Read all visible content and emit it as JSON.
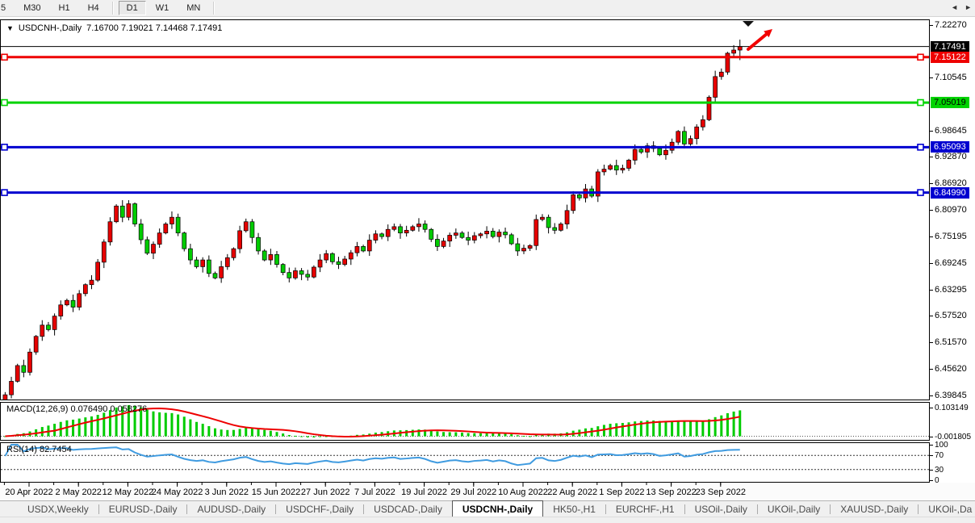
{
  "toolbar": {
    "timeframes": [
      {
        "label": "5",
        "active": false
      },
      {
        "label": "M30",
        "active": false
      },
      {
        "label": "H1",
        "active": false
      },
      {
        "label": "H4",
        "active": false
      },
      {
        "label": "D1",
        "active": true
      },
      {
        "label": "W1",
        "active": false
      },
      {
        "label": "MN",
        "active": false
      }
    ]
  },
  "chart_header": {
    "marker": "▼",
    "title": "USDCNH-,Daily",
    "ohlc": "7.16700 7.19021 7.14468 7.17491"
  },
  "macd_panel": {
    "label": "MACD(12,26,9) 0.076490 0.058276",
    "axis_top": "0.103149",
    "axis_bottom": "-0.001805"
  },
  "rsi_panel": {
    "label": "RSI(14) 82.7454",
    "axis": [
      "100",
      "70",
      "30",
      "0"
    ]
  },
  "chart_data": {
    "type": "candlestick",
    "symbol": "USDCNH",
    "timeframe": "Daily",
    "current_ohlc": {
      "open": "7.16700",
      "high": "7.19021",
      "low": "7.14468",
      "close": "7.17491"
    },
    "price_range": {
      "top": 7.2227,
      "bottom": 6.39845
    },
    "first_open": 6.372,
    "closes": [
      6.4,
      6.43,
      6.465,
      6.45,
      6.495,
      6.53,
      6.555,
      6.545,
      6.575,
      6.6,
      6.61,
      6.595,
      6.625,
      6.645,
      6.655,
      6.695,
      6.74,
      6.785,
      6.82,
      6.795,
      6.825,
      6.78,
      6.745,
      6.715,
      6.735,
      6.76,
      6.78,
      6.795,
      6.76,
      6.725,
      6.7,
      6.685,
      6.7,
      6.67,
      6.66,
      6.685,
      6.705,
      6.725,
      6.765,
      6.785,
      6.75,
      6.72,
      6.7,
      6.712,
      6.69,
      6.672,
      6.66,
      6.676,
      6.668,
      6.662,
      6.684,
      6.7,
      6.714,
      6.696,
      6.69,
      6.702,
      6.716,
      6.73,
      6.72,
      6.744,
      6.758,
      6.752,
      6.768,
      6.774,
      6.76,
      6.766,
      6.774,
      6.78,
      6.768,
      6.746,
      6.73,
      6.742,
      6.755,
      6.76,
      6.75,
      6.744,
      6.754,
      6.758,
      6.764,
      6.752,
      6.762,
      6.756,
      6.736,
      6.72,
      6.726,
      6.732,
      6.79,
      6.795,
      6.772,
      6.766,
      6.78,
      6.81,
      6.845,
      6.838,
      6.858,
      6.842,
      6.896,
      6.902,
      6.91,
      6.9,
      6.904,
      6.922,
      6.946,
      6.94,
      6.954,
      6.948,
      6.934,
      6.944,
      6.962,
      6.986,
      6.958,
      6.97,
      6.996,
      7.012,
      7.062,
      7.108,
      7.118,
      7.16,
      7.167,
      7.17491
    ],
    "ohlc_overrides": {
      "119": [
        7.167,
        7.19021,
        7.14468,
        7.17491
      ]
    },
    "current_price": {
      "value": 7.17491,
      "label": "7.17491",
      "bg": "#000000",
      "fg": "#ffffff"
    },
    "levels": [
      {
        "price": 7.15122,
        "label": "7.15122",
        "color": "#ee0000",
        "label_fg": "#ffffff"
      },
      {
        "price": 7.05019,
        "label": "7.05019",
        "color": "#00d300",
        "label_fg": "#000000"
      },
      {
        "price": 6.95093,
        "label": "6.95093",
        "color": "#0000d0",
        "label_fg": "#ffffff"
      },
      {
        "price": 6.8499,
        "label": "6.84990",
        "color": "#0000d0",
        "label_fg": "#ffffff"
      }
    ],
    "y_ticks": [
      "7.22270",
      "7.10545",
      "6.98645",
      "6.92870",
      "6.86920",
      "6.80970",
      "6.75195",
      "6.69245",
      "6.63295",
      "6.57520",
      "6.51570",
      "6.45620",
      "6.39845"
    ],
    "x_ticks": [
      {
        "index": 4,
        "label": "20 Apr 2022"
      },
      {
        "index": 12,
        "label": "2 May 2022"
      },
      {
        "index": 20,
        "label": "12 May 2022"
      },
      {
        "index": 28,
        "label": "24 May 2022"
      },
      {
        "index": 36,
        "label": "3 Jun 2022"
      },
      {
        "index": 44,
        "label": "15 Jun 2022"
      },
      {
        "index": 52,
        "label": "27 Jun 2022"
      },
      {
        "index": 60,
        "label": "7 Jul 2022"
      },
      {
        "index": 68,
        "label": "19 Jul 2022"
      },
      {
        "index": 76,
        "label": "29 Jul 2022"
      },
      {
        "index": 84,
        "label": "10 Aug 2022"
      },
      {
        "index": 92,
        "label": "22 Aug 2022"
      },
      {
        "index": 100,
        "label": "1 Sep 2022"
      },
      {
        "index": 108,
        "label": "13 Sep 2022"
      },
      {
        "index": 116,
        "label": "23 Sep 2022"
      }
    ],
    "up_color": "#e60000",
    "down_color": "#00cc00",
    "wick_color": "#000000",
    "macd": {
      "params": [
        12,
        26,
        9
      ],
      "hist_color": "#00cc00",
      "signal_color": "#ee0000",
      "axis_top": "0.103149",
      "axis_bottom": "-0.001805"
    },
    "rsi": {
      "period": 14,
      "color": "#3f9be0",
      "dashed_levels": [
        70,
        30
      ],
      "axis_levels": [
        100,
        70,
        30,
        0
      ]
    },
    "annotations": [
      {
        "type": "trend-arrow",
        "color": "#f20000"
      },
      {
        "type": "chart-shift-marker",
        "color": "#111111"
      }
    ]
  },
  "tabs": {
    "items": [
      {
        "label": "USDX,Weekly",
        "active": false
      },
      {
        "label": "EURUSD-,Daily",
        "active": false
      },
      {
        "label": "AUDUSD-,Daily",
        "active": false
      },
      {
        "label": "USDCHF-,Daily",
        "active": false
      },
      {
        "label": "USDCAD-,Daily",
        "active": false
      },
      {
        "label": "USDCNH-,Daily",
        "active": true
      },
      {
        "label": "HK50-,H1",
        "active": false
      },
      {
        "label": "EURCHF-,H1",
        "active": false
      },
      {
        "label": "USOil-,Daily",
        "active": false
      },
      {
        "label": "UKOil-,Daily",
        "active": false
      },
      {
        "label": "XAUUSD-,Daily",
        "active": false
      },
      {
        "label": "UKOil-,Da",
        "active": false
      }
    ],
    "scroll_left": "◄",
    "scroll_right": "►"
  }
}
